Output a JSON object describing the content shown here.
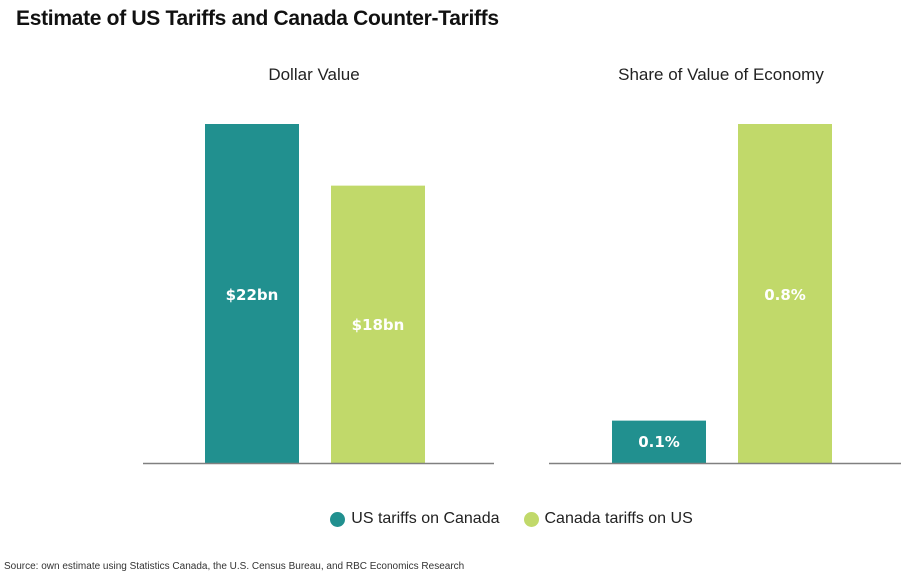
{
  "title": "Estimate of US Tariffs and Canada Counter-Tariffs",
  "source": "Source: own estimate using Statistics Canada, the U.S. Census Bureau, and RBC Economics Research",
  "colors": {
    "us": "#21908f",
    "canada": "#c1d96a",
    "axis": "#808080"
  },
  "legend": [
    {
      "label": "US tariffs on Canada",
      "color": "#21908f"
    },
    {
      "label": "Canada tariffs on US",
      "color": "#c1d96a"
    }
  ],
  "chart_data": [
    {
      "type": "bar",
      "title": "Dollar Value",
      "categories": [
        "US tariffs on Canada",
        "Canada tariffs on US"
      ],
      "values": [
        22,
        18
      ],
      "data_labels": [
        "$22bn",
        "$18bn"
      ],
      "unit": "billion USD",
      "xlabel": "",
      "ylabel": "",
      "ylim": [
        0,
        22
      ],
      "grid": false,
      "legend": "bottom"
    },
    {
      "type": "bar",
      "title": "Share of Value of Economy",
      "categories": [
        "US tariffs on Canada",
        "Canada tariffs on US"
      ],
      "values": [
        0.1,
        0.8
      ],
      "data_labels": [
        "0.1%",
        "0.8%"
      ],
      "unit": "percent of GDP",
      "xlabel": "",
      "ylabel": "",
      "ylim": [
        0,
        0.8
      ],
      "grid": false,
      "legend": "bottom"
    }
  ]
}
